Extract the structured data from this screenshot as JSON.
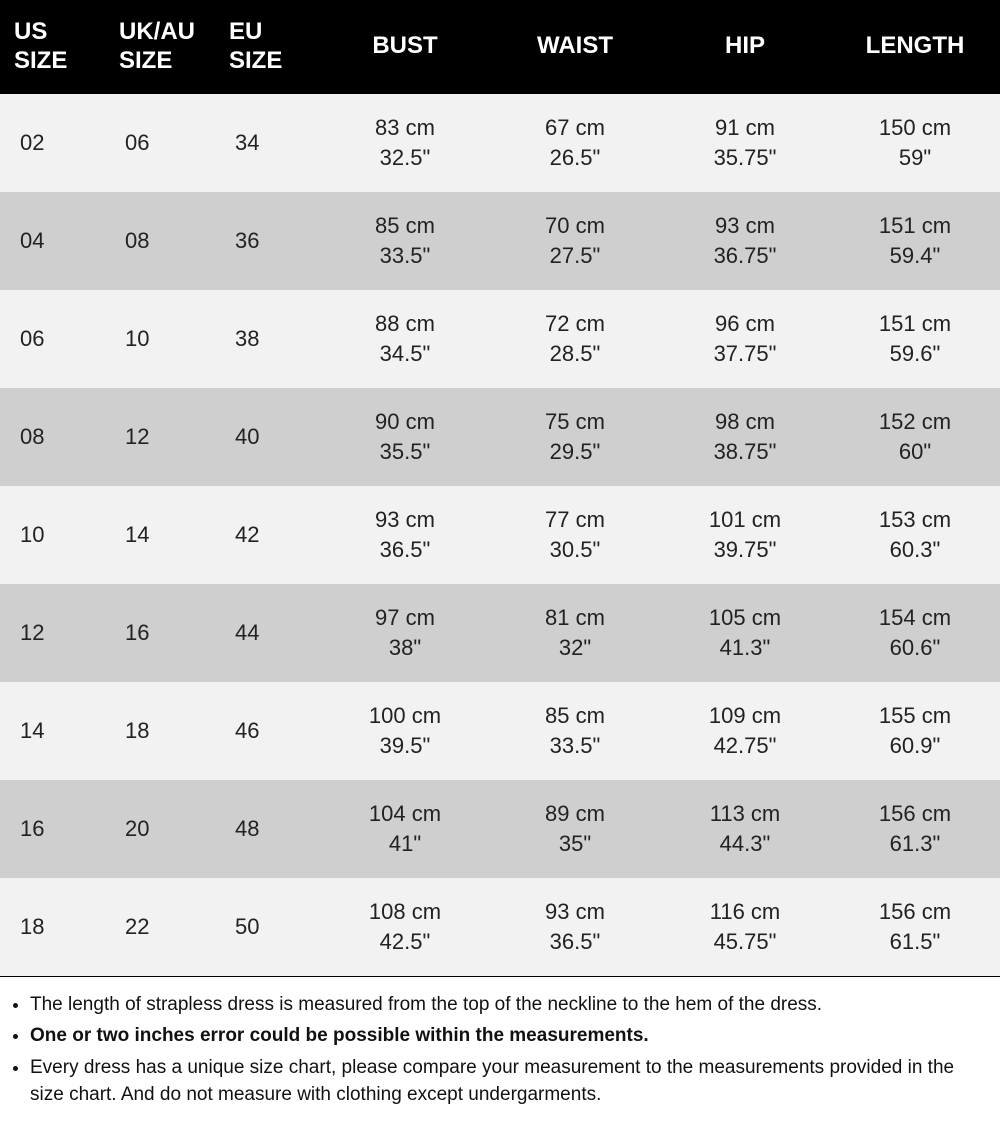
{
  "table": {
    "columns": [
      {
        "line1": "US",
        "line2": "SIZE",
        "class": "size-col",
        "width": "10.5%"
      },
      {
        "line1": "UK/AU",
        "line2": "SIZE",
        "class": "size-col",
        "width": "11%"
      },
      {
        "line1": "EU",
        "line2": "SIZE",
        "class": "size-col",
        "width": "10.5%"
      },
      {
        "line1": "BUST",
        "line2": "",
        "class": "",
        "width": "17%"
      },
      {
        "line1": "WAIST",
        "line2": "",
        "class": "",
        "width": "17%"
      },
      {
        "line1": "HIP",
        "line2": "",
        "class": "",
        "width": "17%"
      },
      {
        "line1": "LENGTH",
        "line2": "",
        "class": "",
        "width": "17%"
      }
    ],
    "row_bg_light": "#f2f2f2",
    "row_bg_dark": "#cfcfcf",
    "header_bg": "#000000",
    "header_fg": "#ffffff",
    "rows": [
      {
        "shade": "light",
        "us": "02",
        "uk": "06",
        "eu": "34",
        "bust_cm": "83 cm",
        "bust_in": "32.5\"",
        "waist_cm": "67 cm",
        "waist_in": "26.5\"",
        "hip_cm": "91 cm",
        "hip_in": "35.75\"",
        "len_cm": "150 cm",
        "len_in": "59\""
      },
      {
        "shade": "dark",
        "us": "04",
        "uk": "08",
        "eu": "36",
        "bust_cm": "85 cm",
        "bust_in": "33.5\"",
        "waist_cm": "70 cm",
        "waist_in": "27.5\"",
        "hip_cm": "93 cm",
        "hip_in": "36.75\"",
        "len_cm": "151 cm",
        "len_in": "59.4\""
      },
      {
        "shade": "light",
        "us": "06",
        "uk": "10",
        "eu": "38",
        "bust_cm": "88 cm",
        "bust_in": "34.5\"",
        "waist_cm": "72 cm",
        "waist_in": "28.5\"",
        "hip_cm": "96 cm",
        "hip_in": "37.75\"",
        "len_cm": "151 cm",
        "len_in": "59.6\""
      },
      {
        "shade": "dark",
        "us": "08",
        "uk": "12",
        "eu": "40",
        "bust_cm": "90 cm",
        "bust_in": "35.5\"",
        "waist_cm": "75 cm",
        "waist_in": "29.5\"",
        "hip_cm": "98 cm",
        "hip_in": "38.75\"",
        "len_cm": "152 cm",
        "len_in": "60\""
      },
      {
        "shade": "light",
        "us": "10",
        "uk": "14",
        "eu": "42",
        "bust_cm": "93 cm",
        "bust_in": "36.5\"",
        "waist_cm": "77 cm",
        "waist_in": "30.5\"",
        "hip_cm": "101 cm",
        "hip_in": "39.75\"",
        "len_cm": "153 cm",
        "len_in": "60.3\""
      },
      {
        "shade": "dark",
        "us": "12",
        "uk": "16",
        "eu": "44",
        "bust_cm": "97 cm",
        "bust_in": "38\"",
        "waist_cm": "81 cm",
        "waist_in": "32\"",
        "hip_cm": "105 cm",
        "hip_in": "41.3\"",
        "len_cm": "154 cm",
        "len_in": "60.6\""
      },
      {
        "shade": "light",
        "us": "14",
        "uk": "18",
        "eu": "46",
        "bust_cm": "100 cm",
        "bust_in": "39.5\"",
        "waist_cm": "85 cm",
        "waist_in": "33.5\"",
        "hip_cm": "109 cm",
        "hip_in": "42.75\"",
        "len_cm": "155 cm",
        "len_in": "60.9\""
      },
      {
        "shade": "dark",
        "us": "16",
        "uk": "20",
        "eu": "48",
        "bust_cm": "104 cm",
        "bust_in": "41\"",
        "waist_cm": "89 cm",
        "waist_in": "35\"",
        "hip_cm": "113 cm",
        "hip_in": "44.3\"",
        "len_cm": "156 cm",
        "len_in": "61.3\""
      },
      {
        "shade": "light",
        "us": "18",
        "uk": "22",
        "eu": "50",
        "bust_cm": "108 cm",
        "bust_in": "42.5\"",
        "waist_cm": "93 cm",
        "waist_in": "36.5\"",
        "hip_cm": "116 cm",
        "hip_in": "45.75\"",
        "len_cm": "156 cm",
        "len_in": "61.5\""
      }
    ]
  },
  "notes": [
    {
      "text": "The length of strapless dress is measured from the top of the neckline to the hem of the dress.",
      "bold": false
    },
    {
      "text": "One or two inches error could be possible within the measurements.",
      "bold": true
    },
    {
      "text": "Every dress has a unique size chart, please compare your measurement to the measurements provided in the size chart. And do not measure with clothing except undergarments.",
      "bold": false
    }
  ]
}
